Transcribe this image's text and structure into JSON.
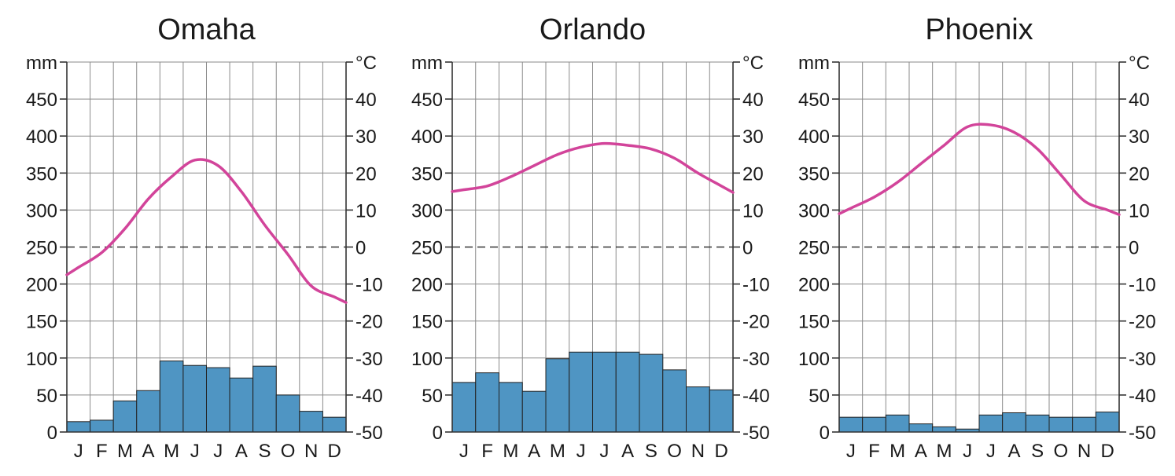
{
  "chart_data": [
    {
      "type": "bar",
      "title": "Omaha",
      "categories": [
        "J",
        "F",
        "M",
        "A",
        "M",
        "J",
        "J",
        "A",
        "S",
        "O",
        "N",
        "D"
      ],
      "left_axis_unit": "mm",
      "right_axis_unit": "°C",
      "left_ticks": [
        "0",
        "50",
        "100",
        "150",
        "200",
        "250",
        "300",
        "350",
        "400",
        "450"
      ],
      "right_ticks": [
        "-50",
        "-40",
        "-30",
        "-20",
        "-10",
        "0",
        "10",
        "20",
        "30",
        "40"
      ],
      "ylim_precip": [
        0,
        500
      ],
      "ylim_temp": [
        -50,
        50
      ],
      "grid": true,
      "series": [
        {
          "values": [
            14,
            16,
            42,
            56,
            96,
            90,
            87,
            73,
            89,
            50,
            28,
            20
          ]
        },
        {
          "values": [
            -5.5,
            -1.5,
            5,
            13,
            19,
            23.5,
            22,
            15,
            6,
            -2,
            -10.5,
            -13.5
          ]
        }
      ]
    },
    {
      "type": "bar",
      "title": "Orlando",
      "categories": [
        "J",
        "F",
        "M",
        "A",
        "M",
        "J",
        "J",
        "A",
        "S",
        "O",
        "N",
        "D"
      ],
      "left_axis_unit": "mm",
      "right_axis_unit": "°C",
      "left_ticks": [
        "0",
        "50",
        "100",
        "150",
        "200",
        "250",
        "300",
        "350",
        "400",
        "450"
      ],
      "right_ticks": [
        "-50",
        "-40",
        "-30",
        "-20",
        "-10",
        "0",
        "10",
        "20",
        "30",
        "40"
      ],
      "ylim_precip": [
        0,
        500
      ],
      "ylim_temp": [
        -50,
        50
      ],
      "grid": true,
      "series": [
        {
          "values": [
            67,
            80,
            67,
            55,
            99,
            108,
            108,
            108,
            105,
            84,
            61,
            57
          ]
        },
        {
          "values": [
            15.5,
            16.5,
            19,
            22,
            25,
            27,
            28,
            27.5,
            26.5,
            24,
            20,
            16.5
          ]
        }
      ]
    },
    {
      "type": "bar",
      "title": "Phoenix",
      "categories": [
        "J",
        "F",
        "M",
        "A",
        "M",
        "J",
        "J",
        "A",
        "S",
        "O",
        "N",
        "D"
      ],
      "left_axis_unit": "mm",
      "right_axis_unit": "°C",
      "left_ticks": [
        "0",
        "50",
        "100",
        "150",
        "200",
        "250",
        "300",
        "350",
        "400",
        "450"
      ],
      "right_ticks": [
        "-50",
        "-40",
        "-30",
        "-20",
        "-10",
        "0",
        "10",
        "20",
        "30",
        "40"
      ],
      "ylim_precip": [
        0,
        500
      ],
      "ylim_temp": [
        -50,
        50
      ],
      "grid": true,
      "series": [
        {
          "values": [
            20,
            20,
            23,
            11,
            7,
            4,
            23,
            26,
            23,
            20,
            20,
            27
          ]
        },
        {
          "values": [
            10.5,
            13.5,
            17.5,
            22.5,
            27.5,
            32.5,
            33,
            31,
            26.5,
            19.5,
            12.5,
            10
          ]
        }
      ]
    }
  ],
  "colors": {
    "bar_fill": "#4f95c3",
    "bar_stroke": "#222222",
    "temp_line": "#d2449a",
    "grid": "#8a8a8a",
    "axis": "#333333",
    "zero_line": "#333333"
  }
}
